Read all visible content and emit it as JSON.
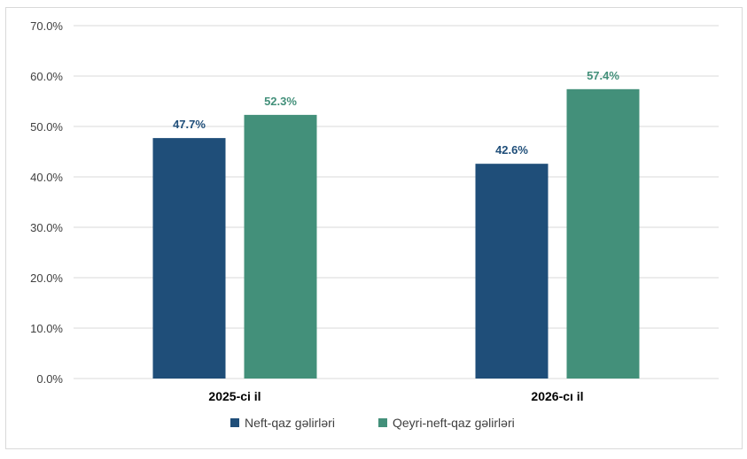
{
  "chart_data": {
    "type": "bar",
    "categories": [
      "2025-ci il",
      "2026-cı il"
    ],
    "series": [
      {
        "name": "Neft-qaz gəlirləri",
        "values": [
          47.7,
          42.6
        ],
        "color": "#1f4e79"
      },
      {
        "name": "Qeyri-neft-qaz gəlirləri",
        "values": [
          52.3,
          57.4
        ],
        "color": "#43907a"
      }
    ],
    "data_labels": [
      [
        "47.7%",
        "42.6%"
      ],
      [
        "52.3%",
        "57.4%"
      ]
    ],
    "y_ticks": [
      "0.0%",
      "10.0%",
      "20.0%",
      "30.0%",
      "40.0%",
      "50.0%",
      "60.0%",
      "70.0%"
    ],
    "ylim": [
      0,
      70
    ],
    "grid": true,
    "legend_position": "bottom",
    "label_colors": [
      "#1f4e79",
      "#43907a"
    ]
  }
}
